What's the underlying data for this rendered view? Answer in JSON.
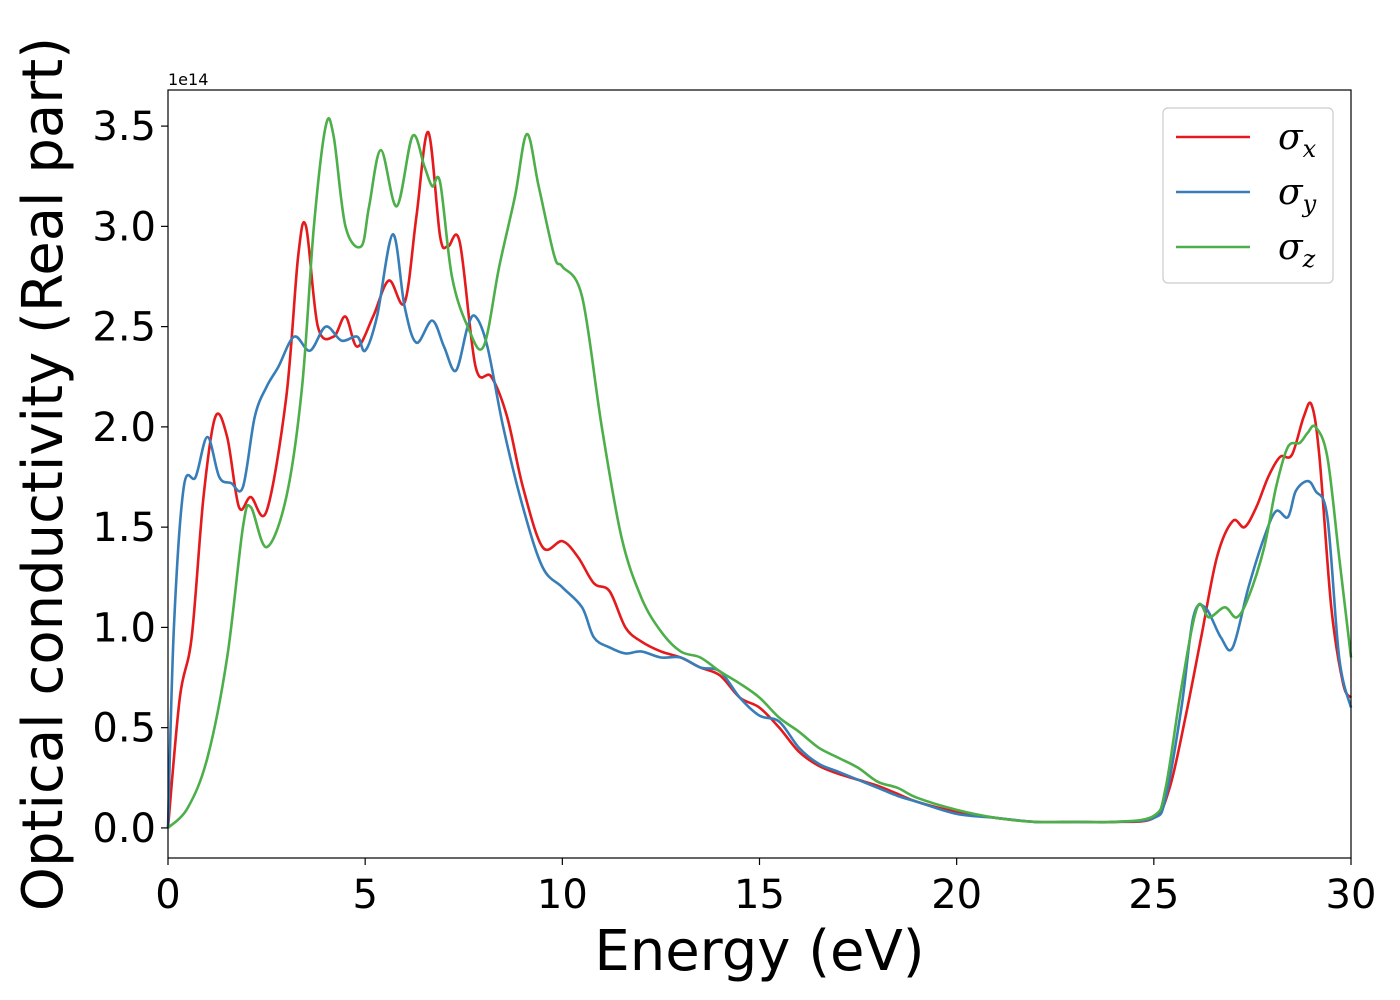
{
  "chart_data": {
    "type": "line",
    "xlabel": "Energy (eV)",
    "ylabel": "Optical conductivity (Real part)",
    "offset_label": "1e14",
    "xlim": [
      0,
      30
    ],
    "ylim": [
      -0.15,
      3.68
    ],
    "xticks": [
      0,
      5,
      10,
      15,
      20,
      25,
      30
    ],
    "xtick_labels": [
      "0",
      "5",
      "10",
      "15",
      "20",
      "25",
      "30"
    ],
    "yticks": [
      0.0,
      0.5,
      1.0,
      1.5,
      2.0,
      2.5,
      3.0,
      3.5
    ],
    "ytick_labels": [
      "0.0",
      "0.5",
      "1.0",
      "1.5",
      "2.0",
      "2.5",
      "3.0",
      "3.5"
    ],
    "grid": false,
    "legend_position": "top-right",
    "series": [
      {
        "name": "σx",
        "symbol": "σ",
        "subscript": "x",
        "color": "#e41a1c",
        "x": [
          0,
          0.3,
          0.6,
          0.9,
          1.2,
          1.5,
          1.8,
          2.1,
          2.5,
          3.0,
          3.3,
          3.5,
          3.8,
          4.2,
          4.5,
          4.8,
          5.2,
          5.6,
          6.0,
          6.3,
          6.6,
          6.9,
          7.1,
          7.4,
          7.8,
          8.2,
          8.6,
          9.0,
          9.5,
          10.0,
          10.4,
          10.8,
          11.2,
          11.6,
          12.0,
          12.5,
          13.0,
          13.5,
          14.0,
          14.5,
          15.0,
          15.5,
          16.0,
          16.5,
          17.0,
          17.5,
          18.0,
          18.5,
          19.0,
          20.0,
          21.0,
          22.0,
          23.0,
          24.0,
          25.0,
          25.4,
          25.8,
          26.2,
          26.6,
          27.0,
          27.3,
          27.6,
          27.9,
          28.2,
          28.5,
          28.8,
          29.0,
          29.2,
          29.5,
          29.8,
          30.0
        ],
        "y": [
          0.0,
          0.65,
          0.95,
          1.65,
          2.05,
          1.95,
          1.6,
          1.65,
          1.58,
          2.15,
          2.85,
          3.0,
          2.5,
          2.45,
          2.55,
          2.4,
          2.55,
          2.73,
          2.62,
          3.05,
          3.47,
          2.95,
          2.9,
          2.92,
          2.3,
          2.25,
          2.05,
          1.7,
          1.4,
          1.43,
          1.35,
          1.22,
          1.18,
          1.0,
          0.93,
          0.88,
          0.85,
          0.8,
          0.76,
          0.65,
          0.6,
          0.5,
          0.38,
          0.31,
          0.27,
          0.24,
          0.21,
          0.17,
          0.13,
          0.08,
          0.05,
          0.03,
          0.03,
          0.03,
          0.05,
          0.2,
          0.55,
          0.95,
          1.35,
          1.53,
          1.5,
          1.6,
          1.75,
          1.85,
          1.86,
          2.05,
          2.11,
          1.85,
          1.1,
          0.72,
          0.65
        ]
      },
      {
        "name": "σy",
        "symbol": "σ",
        "subscript": "y",
        "color": "#377eb8",
        "x": [
          0,
          0.15,
          0.4,
          0.7,
          1.0,
          1.3,
          1.6,
          1.9,
          2.2,
          2.5,
          2.8,
          3.2,
          3.6,
          4.0,
          4.4,
          4.8,
          5.0,
          5.3,
          5.7,
          6.0,
          6.3,
          6.7,
          7.0,
          7.3,
          7.6,
          7.8,
          8.1,
          8.5,
          9.0,
          9.5,
          10.0,
          10.5,
          10.8,
          11.2,
          11.6,
          12.0,
          12.5,
          13.0,
          13.5,
          14.0,
          14.5,
          15.0,
          15.5,
          16.0,
          16.5,
          17.0,
          17.5,
          18.0,
          18.5,
          19.0,
          20.0,
          21.0,
          22.0,
          23.0,
          24.0,
          25.0,
          25.3,
          25.7,
          26.0,
          26.3,
          26.7,
          27.0,
          27.4,
          27.8,
          28.1,
          28.4,
          28.6,
          28.9,
          29.1,
          29.4,
          29.7,
          30.0
        ],
        "y": [
          0.0,
          1.0,
          1.7,
          1.75,
          1.95,
          1.75,
          1.72,
          1.7,
          2.05,
          2.2,
          2.3,
          2.45,
          2.38,
          2.5,
          2.43,
          2.45,
          2.38,
          2.55,
          2.96,
          2.6,
          2.42,
          2.53,
          2.4,
          2.28,
          2.5,
          2.55,
          2.4,
          2.0,
          1.6,
          1.3,
          1.2,
          1.1,
          0.95,
          0.9,
          0.87,
          0.88,
          0.85,
          0.85,
          0.8,
          0.78,
          0.65,
          0.56,
          0.53,
          0.4,
          0.32,
          0.28,
          0.24,
          0.2,
          0.16,
          0.13,
          0.07,
          0.05,
          0.03,
          0.03,
          0.03,
          0.05,
          0.15,
          0.6,
          1.05,
          1.1,
          0.95,
          0.9,
          1.2,
          1.45,
          1.58,
          1.55,
          1.68,
          1.73,
          1.68,
          1.55,
          0.85,
          0.6
        ]
      },
      {
        "name": "σz",
        "symbol": "σ",
        "subscript": "z",
        "color": "#4daf4a",
        "x": [
          0,
          0.5,
          1.0,
          1.5,
          1.9,
          2.1,
          2.5,
          3.0,
          3.4,
          3.7,
          4.0,
          4.2,
          4.5,
          4.9,
          5.1,
          5.4,
          5.8,
          6.2,
          6.5,
          6.7,
          6.9,
          7.2,
          7.6,
          8.0,
          8.4,
          8.8,
          9.1,
          9.4,
          9.8,
          10.0,
          10.5,
          11.0,
          11.5,
          12.0,
          12.5,
          13.0,
          13.5,
          14.0,
          14.5,
          15.0,
          15.5,
          16.0,
          16.5,
          17.0,
          17.5,
          18.0,
          18.5,
          19.0,
          20.0,
          21.0,
          22.0,
          23.0,
          24.0,
          25.0,
          25.3,
          25.7,
          26.1,
          26.4,
          26.8,
          27.1,
          27.4,
          27.8,
          28.1,
          28.4,
          28.7,
          28.9,
          29.1,
          29.4,
          29.7,
          30.0
        ],
        "y": [
          0.0,
          0.1,
          0.35,
          0.85,
          1.5,
          1.6,
          1.4,
          1.65,
          2.2,
          3.0,
          3.5,
          3.45,
          3.0,
          2.9,
          3.1,
          3.38,
          3.1,
          3.45,
          3.3,
          3.2,
          3.22,
          2.75,
          2.5,
          2.4,
          2.8,
          3.15,
          3.46,
          3.2,
          2.85,
          2.8,
          2.65,
          2.0,
          1.45,
          1.15,
          0.98,
          0.88,
          0.85,
          0.78,
          0.72,
          0.65,
          0.55,
          0.48,
          0.4,
          0.35,
          0.3,
          0.23,
          0.2,
          0.15,
          0.09,
          0.05,
          0.03,
          0.03,
          0.03,
          0.06,
          0.2,
          0.7,
          1.1,
          1.05,
          1.1,
          1.05,
          1.15,
          1.4,
          1.7,
          1.9,
          1.92,
          1.97,
          2.0,
          1.85,
          1.35,
          0.85
        ]
      }
    ]
  }
}
